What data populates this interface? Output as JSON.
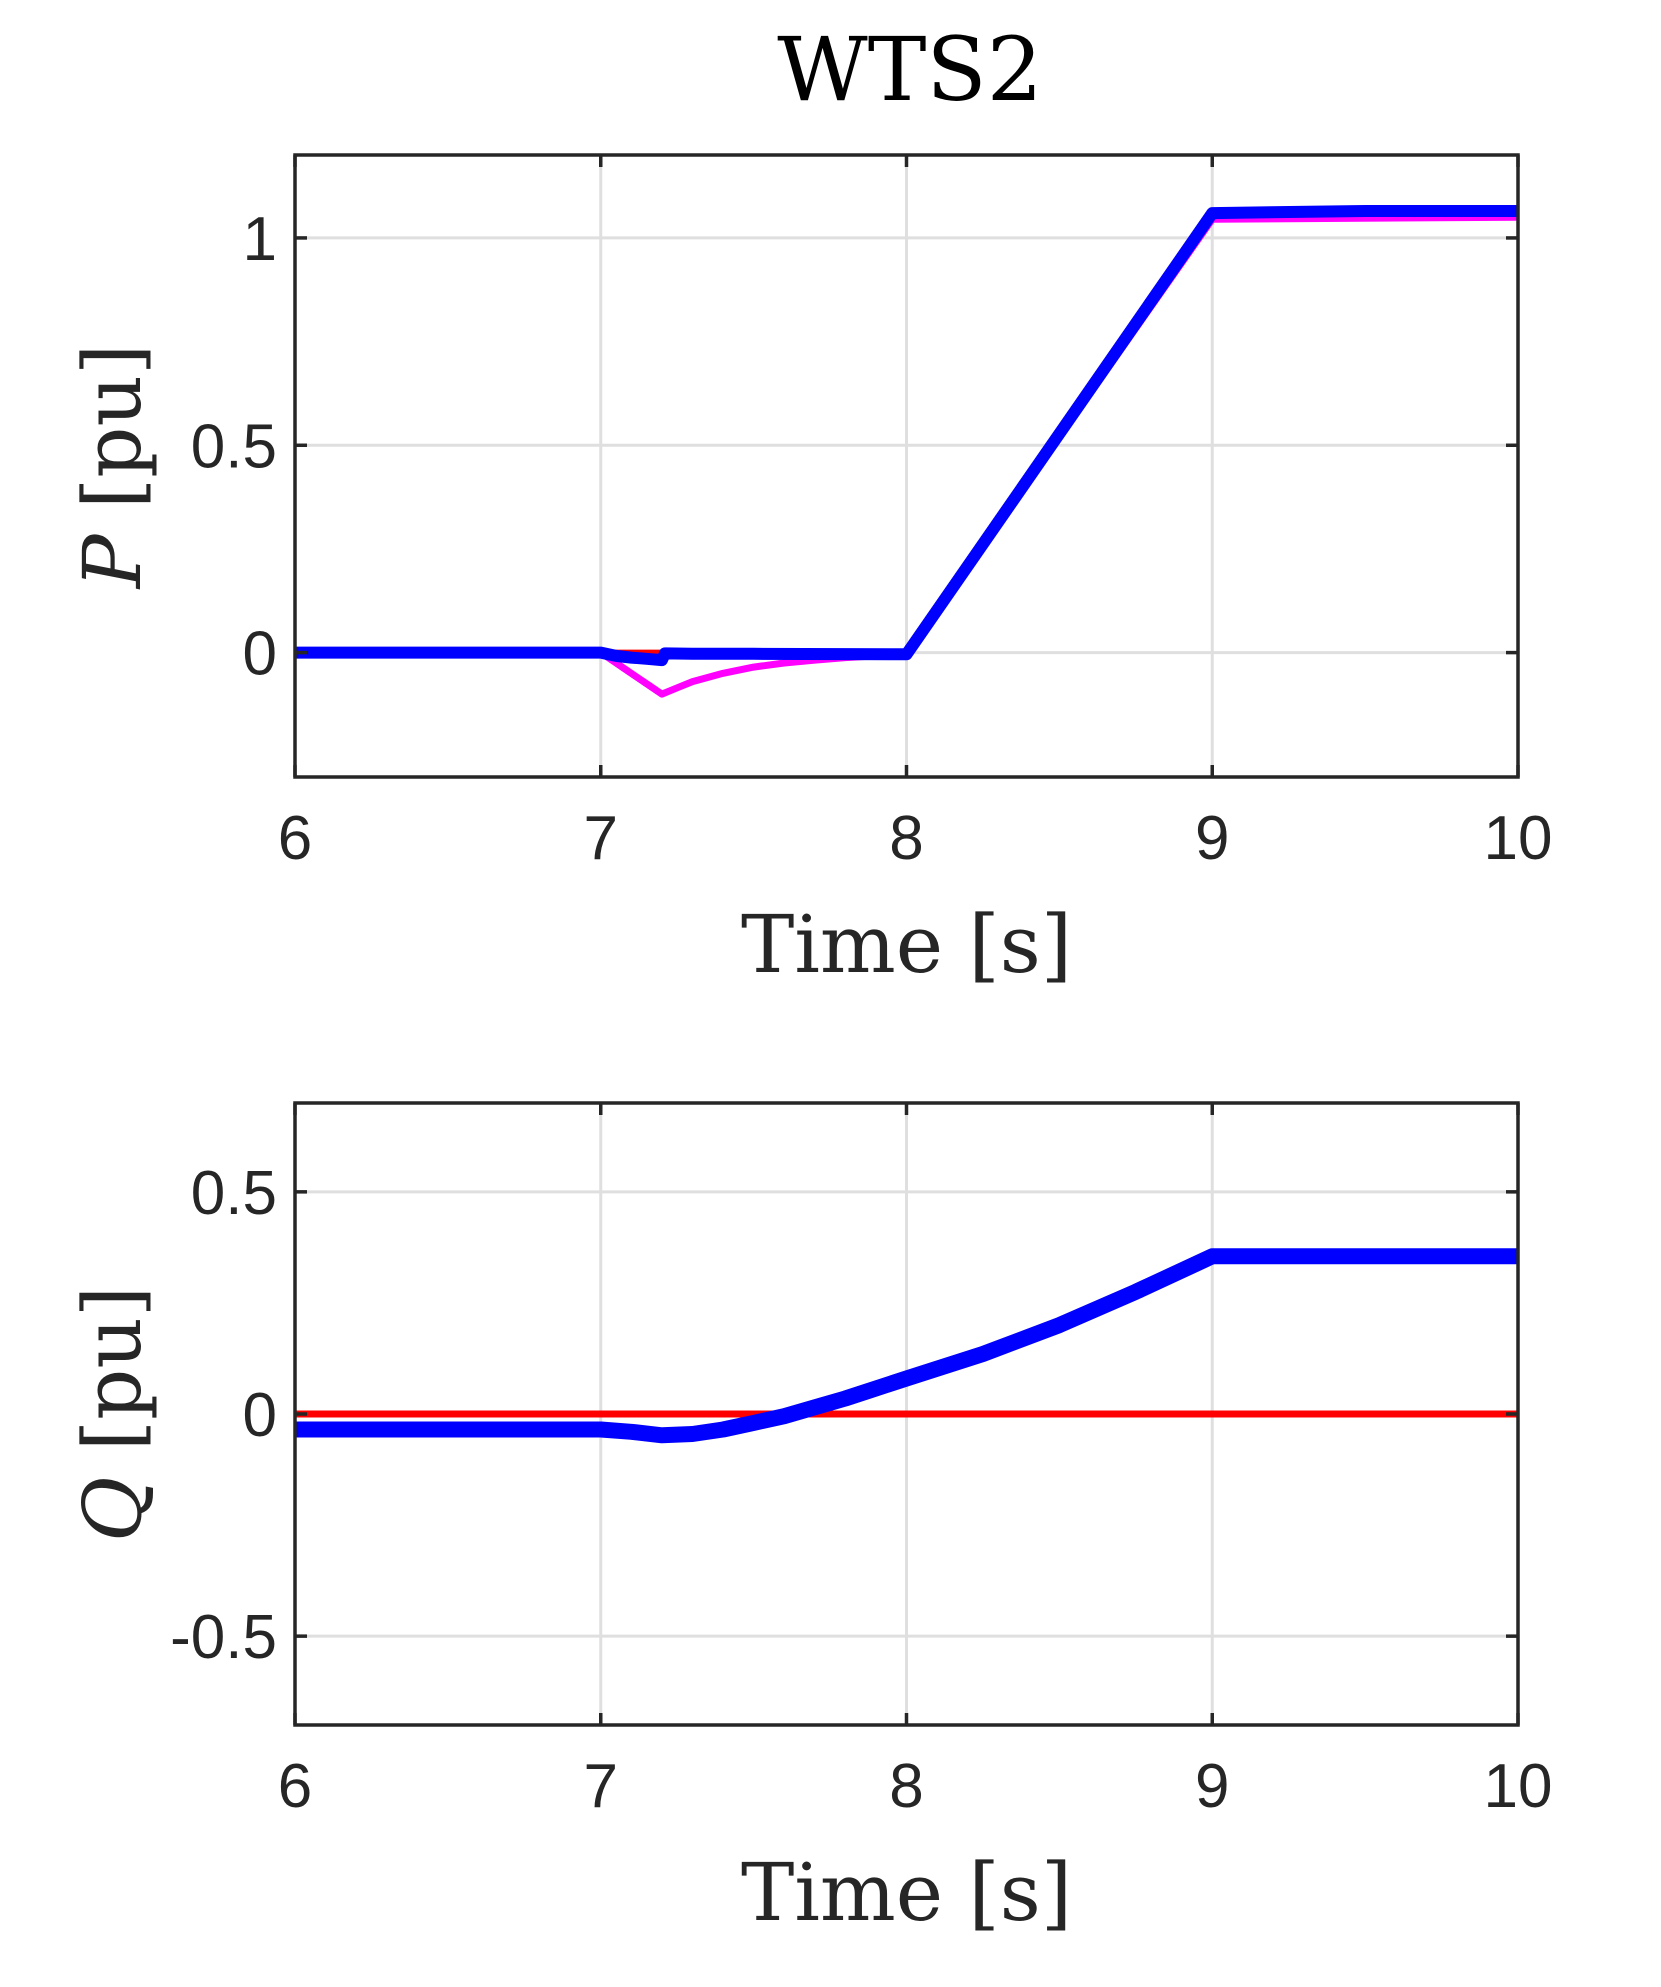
{
  "figure": {
    "title": "WTS2"
  },
  "chart_data": [
    {
      "type": "line",
      "xlabel": "Time [s]",
      "ylabel_var": "P",
      "ylabel_unit": "[pu]",
      "xlim": [
        6,
        10
      ],
      "ylim": [
        -0.3,
        1.2
      ],
      "xticks": [
        6,
        7,
        8,
        9,
        10
      ],
      "yticks": [
        0,
        0.5,
        1
      ],
      "ytick_labels": [
        "0",
        "0.5",
        "1"
      ],
      "grid": true,
      "series": [
        {
          "color": "#ff0000",
          "width": 6,
          "x": [
            6,
            7,
            7.2,
            8,
            9,
            10
          ],
          "y": [
            0,
            0,
            0,
            0,
            1.05,
            1.05
          ]
        },
        {
          "color": "#ff00ff",
          "width": 7,
          "x": [
            6,
            7,
            7.04,
            7.08,
            7.12,
            7.16,
            7.2,
            7.25,
            7.3,
            7.4,
            7.5,
            7.6,
            7.7,
            7.8,
            7.9,
            8,
            9,
            10
          ],
          "y": [
            0,
            0,
            -0.02,
            -0.04,
            -0.06,
            -0.08,
            -0.1,
            -0.085,
            -0.07,
            -0.05,
            -0.035,
            -0.025,
            -0.018,
            -0.012,
            -0.008,
            -0.005,
            1.045,
            1.05
          ]
        },
        {
          "color": "#0000ff",
          "width": 12,
          "x": [
            6,
            7,
            7.05,
            7.1,
            7.15,
            7.2,
            7.21,
            7.3,
            7.5,
            8,
            9,
            9.5,
            10
          ],
          "y": [
            0,
            0,
            -0.008,
            -0.012,
            -0.015,
            -0.018,
            -0.002,
            -0.003,
            -0.003,
            -0.004,
            1.06,
            1.065,
            1.065
          ]
        }
      ]
    },
    {
      "type": "line",
      "xlabel": "Time [s]",
      "ylabel_var": "Q",
      "ylabel_unit": "[pu]",
      "xlim": [
        6,
        10
      ],
      "ylim": [
        -0.7,
        0.7
      ],
      "xticks": [
        6,
        7,
        8,
        9,
        10
      ],
      "yticks": [
        -0.5,
        0,
        0.5
      ],
      "ytick_labels": [
        "-0.5",
        "0",
        "0.5"
      ],
      "grid": true,
      "series": [
        {
          "color": "#ff0000",
          "width": 7,
          "x": [
            6,
            10
          ],
          "y": [
            0,
            0
          ]
        },
        {
          "color": "#0000ff",
          "width": 16,
          "x": [
            6,
            7,
            7.1,
            7.2,
            7.3,
            7.4,
            7.5,
            7.6,
            7.8,
            8,
            8.25,
            8.5,
            8.75,
            9,
            9.05,
            10
          ],
          "y": [
            -0.035,
            -0.035,
            -0.04,
            -0.048,
            -0.045,
            -0.035,
            -0.02,
            -0.005,
            0.035,
            0.08,
            0.135,
            0.2,
            0.275,
            0.355,
            0.355,
            0.355
          ]
        }
      ]
    }
  ]
}
